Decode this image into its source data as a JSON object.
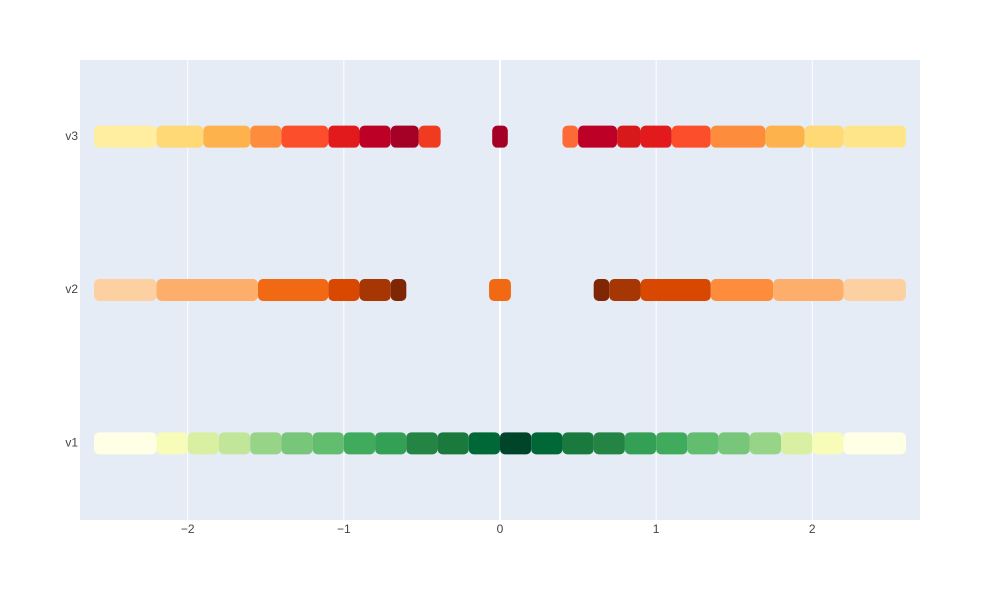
{
  "chart_data": {
    "type": "strip",
    "categories": [
      "v1",
      "v2",
      "v3"
    ],
    "xlim": [
      -2.69,
      2.69
    ],
    "ylim": [
      -0.5,
      2.5
    ],
    "xticks": [
      {
        "value": -2,
        "label": "−2"
      },
      {
        "value": -1,
        "label": "−1"
      },
      0,
      1,
      2
    ],
    "grid": true,
    "series": [
      {
        "name": "v1",
        "segments": [
          {
            "range": [
              -2.6,
              -2.2
            ],
            "color": "#ffffe5"
          },
          {
            "range": [
              -2.2,
              -2.0
            ],
            "color": "#f7fcb9"
          },
          {
            "range": [
              -2.0,
              -1.8
            ],
            "color": "#d9f0a3"
          },
          {
            "range": [
              -1.8,
              -1.6
            ],
            "color": "#c2e699"
          },
          {
            "range": [
              -1.6,
              -1.4
            ],
            "color": "#98d488"
          },
          {
            "range": [
              -1.4,
              -1.2
            ],
            "color": "#78c679"
          },
          {
            "range": [
              -1.2,
              -1.0
            ],
            "color": "#62bd6f"
          },
          {
            "range": [
              -1.0,
              -0.8
            ],
            "color": "#41ab5d"
          },
          {
            "range": [
              -0.8,
              -0.6
            ],
            "color": "#34a055"
          },
          {
            "range": [
              -0.6,
              -0.4
            ],
            "color": "#238443"
          },
          {
            "range": [
              -0.4,
              -0.2
            ],
            "color": "#1a7a3e"
          },
          {
            "range": [
              -0.2,
              0.0
            ],
            "color": "#006837"
          },
          {
            "range": [
              0.0,
              0.2
            ],
            "color": "#004529"
          },
          {
            "range": [
              0.2,
              0.4
            ],
            "color": "#006837"
          },
          {
            "range": [
              0.4,
              0.6
            ],
            "color": "#1a7a3e"
          },
          {
            "range": [
              0.6,
              0.8
            ],
            "color": "#238443"
          },
          {
            "range": [
              0.8,
              1.0
            ],
            "color": "#34a055"
          },
          {
            "range": [
              1.0,
              1.2
            ],
            "color": "#41ab5d"
          },
          {
            "range": [
              1.2,
              1.4
            ],
            "color": "#62bd6f"
          },
          {
            "range": [
              1.4,
              1.6
            ],
            "color": "#78c679"
          },
          {
            "range": [
              1.6,
              1.8
            ],
            "color": "#98d488"
          },
          {
            "range": [
              1.8,
              2.0
            ],
            "color": "#d9f0a3"
          },
          {
            "range": [
              2.0,
              2.2
            ],
            "color": "#f7fcb9"
          },
          {
            "range": [
              2.2,
              2.6
            ],
            "color": "#ffffe5"
          }
        ]
      },
      {
        "name": "v2",
        "segments": [
          {
            "range": [
              -2.6,
              -2.2
            ],
            "color": "#fdd0a2"
          },
          {
            "range": [
              -2.2,
              -1.55
            ],
            "color": "#fdae6b"
          },
          {
            "range": [
              -1.55,
              -1.1
            ],
            "color": "#f16913"
          },
          {
            "range": [
              -1.1,
              -0.9
            ],
            "color": "#d94801"
          },
          {
            "range": [
              -0.9,
              -0.7
            ],
            "color": "#a63603"
          },
          {
            "range": [
              -0.7,
              -0.6
            ],
            "color": "#7f2704"
          },
          {
            "range": [
              -0.07,
              0.07
            ],
            "color": "#f16913"
          },
          {
            "range": [
              0.6,
              0.7
            ],
            "color": "#7f2704"
          },
          {
            "range": [
              0.7,
              0.9
            ],
            "color": "#a63603"
          },
          {
            "range": [
              0.9,
              1.35
            ],
            "color": "#d94801"
          },
          {
            "range": [
              1.35,
              1.75
            ],
            "color": "#fd8d3c"
          },
          {
            "range": [
              1.75,
              2.2
            ],
            "color": "#fdae6b"
          },
          {
            "range": [
              2.2,
              2.6
            ],
            "color": "#fdd0a2"
          }
        ]
      },
      {
        "name": "v3",
        "segments": [
          {
            "range": [
              -2.6,
              -2.2
            ],
            "color": "#ffeda0"
          },
          {
            "range": [
              -2.2,
              -1.9
            ],
            "color": "#fed976"
          },
          {
            "range": [
              -1.9,
              -1.6
            ],
            "color": "#feb24c"
          },
          {
            "range": [
              -1.6,
              -1.4
            ],
            "color": "#fd8d3c"
          },
          {
            "range": [
              -1.4,
              -1.1
            ],
            "color": "#fc4e2a"
          },
          {
            "range": [
              -1.1,
              -0.9
            ],
            "color": "#e31a1c"
          },
          {
            "range": [
              -0.9,
              -0.7
            ],
            "color": "#bd0026"
          },
          {
            "range": [
              -0.7,
              -0.52
            ],
            "color": "#a50026"
          },
          {
            "range": [
              -0.52,
              -0.38
            ],
            "color": "#f03b20"
          },
          {
            "range": [
              -0.05,
              0.05
            ],
            "color": "#a50026"
          },
          {
            "range": [
              0.4,
              0.5
            ],
            "color": "#fd6a35"
          },
          {
            "range": [
              0.5,
              0.75
            ],
            "color": "#bd0026"
          },
          {
            "range": [
              0.75,
              0.9
            ],
            "color": "#d7191c"
          },
          {
            "range": [
              0.9,
              1.1
            ],
            "color": "#e31a1c"
          },
          {
            "range": [
              1.1,
              1.35
            ],
            "color": "#fc4e2a"
          },
          {
            "range": [
              1.35,
              1.7
            ],
            "color": "#fd8d3c"
          },
          {
            "range": [
              1.7,
              1.95
            ],
            "color": "#feb24c"
          },
          {
            "range": [
              1.95,
              2.2
            ],
            "color": "#fed976"
          },
          {
            "range": [
              2.2,
              2.6
            ],
            "color": "#ffe58a"
          }
        ]
      }
    ]
  }
}
